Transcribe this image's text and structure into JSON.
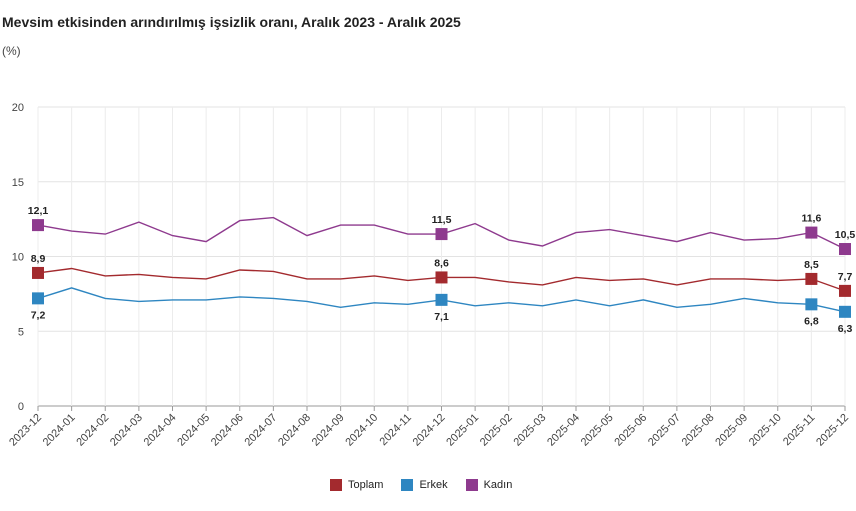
{
  "chart_data": {
    "type": "line",
    "title": "Mevsim etkisinden arındırılmış işsizlik oranı, Aralık 2023 - Aralık 2025",
    "subtitle": "(%)",
    "ylim": [
      0,
      20
    ],
    "yticks": [
      0,
      5,
      10,
      15,
      20
    ],
    "grid": true,
    "legend_position": "bottom",
    "categories": [
      "2023-12",
      "2024-01",
      "2024-02",
      "2024-03",
      "2024-04",
      "2024-05",
      "2024-06",
      "2024-07",
      "2024-08",
      "2024-09",
      "2024-10",
      "2024-11",
      "2024-12",
      "2025-01",
      "2025-02",
      "2025-03",
      "2025-04",
      "2025-05",
      "2025-06",
      "2025-07",
      "2025-08",
      "2025-09",
      "2025-10",
      "2025-11",
      "2025-12"
    ],
    "series": [
      {
        "name": "Toplam",
        "color": "#a32a2e",
        "values": [
          8.9,
          9.2,
          8.7,
          8.8,
          8.6,
          8.5,
          9.1,
          9.0,
          8.5,
          8.5,
          8.7,
          8.4,
          8.6,
          8.6,
          8.3,
          8.1,
          8.6,
          8.4,
          8.5,
          8.1,
          8.5,
          8.5,
          8.4,
          8.5,
          7.7
        ],
        "labels": {
          "0": "8,9",
          "12": "8,6",
          "23": "8,5",
          "24": "7,7"
        }
      },
      {
        "name": "Erkek",
        "color": "#2e86c1",
        "values": [
          7.2,
          7.9,
          7.2,
          7.0,
          7.1,
          7.1,
          7.3,
          7.2,
          7.0,
          6.6,
          6.9,
          6.8,
          7.1,
          6.7,
          6.9,
          6.7,
          7.1,
          6.7,
          7.1,
          6.6,
          6.8,
          7.2,
          6.9,
          6.8,
          6.3
        ],
        "labels": {
          "0": "7,2",
          "12": "7,1",
          "23": "6,8",
          "24": "6,3"
        }
      },
      {
        "name": "Kadın",
        "color": "#8e3a8e",
        "values": [
          12.1,
          11.7,
          11.5,
          12.3,
          11.4,
          11.0,
          12.4,
          12.6,
          11.4,
          12.1,
          12.1,
          11.5,
          11.5,
          12.2,
          11.1,
          10.7,
          11.6,
          11.8,
          11.4,
          11.0,
          11.6,
          11.1,
          11.2,
          11.6,
          10.5
        ],
        "labels": {
          "0": "12,1",
          "12": "11,5",
          "23": "11,6",
          "24": "10,5"
        }
      }
    ]
  }
}
